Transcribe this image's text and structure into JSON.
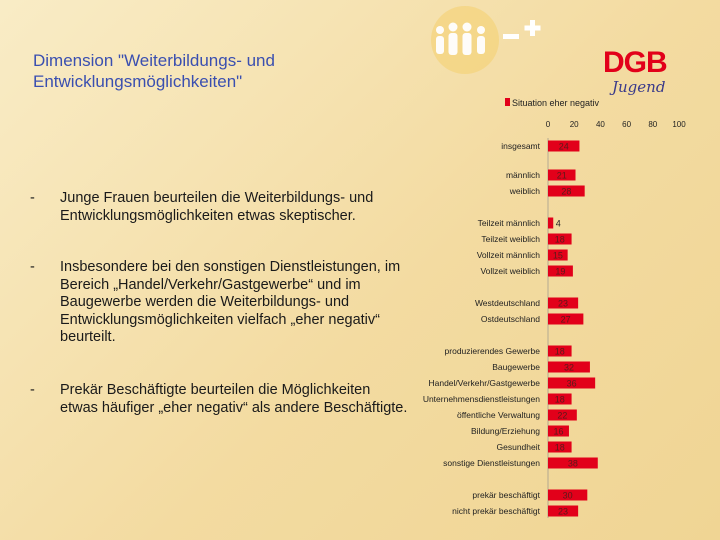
{
  "slide": {
    "title": "Dimension \"Weiterbildungs- und Entwicklungsmöglichkeiten\"",
    "bullets": [
      "Junge Frauen beurteilen die Weiterbildungs- und Entwicklungsmöglichkeiten etwas skeptischer.",
      "Insbesondere bei den sonstigen Dienstleistungen, im Bereich „Handel/Verkehr/Gastgewerbe“ und im Baugewerbe werden die Weiterbildungs- und Entwicklungsmöglichkeiten vielfach „eher negativ“ beurteilt.",
      "Prekär Beschäftigte beurteilen die Möglichkeiten etwas häufiger „eher negativ“ als andere Beschäftigte."
    ],
    "bullet_marker": "-"
  },
  "logo": {
    "name": "DGB",
    "sub": "Jugend",
    "red": "#e2001a"
  },
  "chart_data": {
    "type": "bar",
    "orientation": "horizontal",
    "title": "",
    "xlabel": "",
    "ylabel": "",
    "legend": {
      "label": "Situation eher negativ",
      "position": "top"
    },
    "x_ticks": [
      0,
      20,
      40,
      60,
      80,
      100
    ],
    "xlim": [
      0,
      100
    ],
    "grid": false,
    "bar_color": "#e2001a",
    "categories": [
      "insgesamt",
      "männlich",
      "weiblich",
      "Teilzeit männlich",
      "Teilzeit weiblich",
      "Vollzeit männlich",
      "Vollzeit weiblich",
      "Westdeutschland",
      "Ostdeutschland",
      "produzierendes Gewerbe",
      "Baugewerbe",
      "Handel/Verkehr/Gastgewerbe",
      "Unternehmensdienstleistungen",
      "öffentliche Verwaltung",
      "Bildung/Erziehung",
      "Gesundheit",
      "sonstige Dienstleistungen",
      "prekär beschäftigt",
      "nicht prekär beschäftigt"
    ],
    "values": [
      24,
      21,
      28,
      4,
      18,
      15,
      19,
      23,
      27,
      18,
      32,
      36,
      18,
      22,
      16,
      18,
      38,
      30,
      23
    ]
  }
}
